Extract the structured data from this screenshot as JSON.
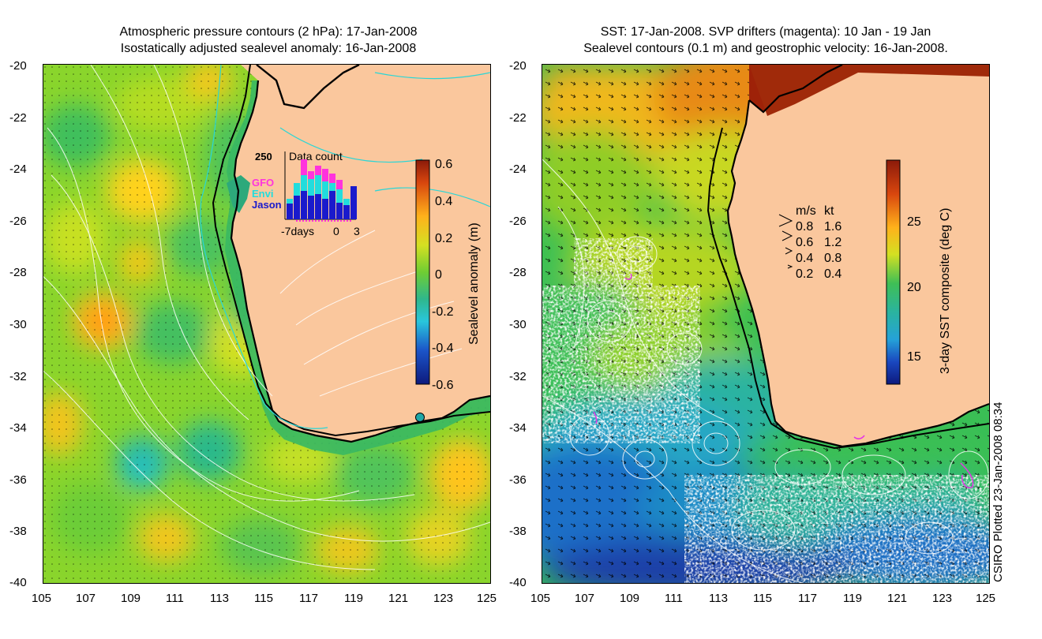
{
  "left_title": {
    "line1": "Atmospheric pressure contours (2 hPa): 17-Jan-2008",
    "line2": "Isostatically adjusted sealevel anomaly: 16-Jan-2008"
  },
  "right_title": {
    "line1": "SST: 17-Jan-2008. SVP drifters (magenta): 10 Jan - 19 Jan",
    "line2": "Sealevel contours (0.1 m) and geostrophic velocity: 16-Jan-2008."
  },
  "y_ticks": [
    "-20",
    "-22",
    "-24",
    "-26",
    "-28",
    "-30",
    "-32",
    "-34",
    "-36",
    "-38",
    "-40"
  ],
  "x_ticks": [
    "105",
    "107",
    "109",
    "111",
    "113",
    "115",
    "117",
    "119",
    "121",
    "123",
    "125"
  ],
  "left_colorbar": {
    "label": "Sealevel anomaly (m)",
    "ticks": [
      "0.6",
      "0.4",
      "0.2",
      "0",
      "-0.2",
      "-0.4",
      "-0.6"
    ]
  },
  "right_colorbar": {
    "label": "3-day SST composite (deg C)",
    "ticks": [
      "25",
      "20",
      "15"
    ]
  },
  "data_count_inset": {
    "title": "Data count",
    "max_label": "250",
    "missions": [
      "GFO",
      "Envi",
      "Jason"
    ],
    "axis_labels": [
      "-7days",
      "0",
      "3"
    ],
    "colors": {
      "GFO": "#ff33dd",
      "Envi": "#22dddd",
      "Jason": "#1a1acc"
    }
  },
  "velocity_legend": {
    "header_ms": "m/s",
    "header_kt": "kt",
    "rows": [
      {
        "ms": "0.8",
        "kt": "1.6"
      },
      {
        "ms": "0.6",
        "kt": "1.2"
      },
      {
        "ms": "0.4",
        "kt": "0.8"
      },
      {
        "ms": "0.2",
        "kt": "0.4"
      }
    ]
  },
  "plotted_note": "CSIRO Plotted 23-Jan-2008 08:34",
  "colors": {
    "land": "#fac79d",
    "sla_zero": "#7fd32b",
    "sst_warm": "#d8560f",
    "sst_cold": "#1a3fa8"
  }
}
